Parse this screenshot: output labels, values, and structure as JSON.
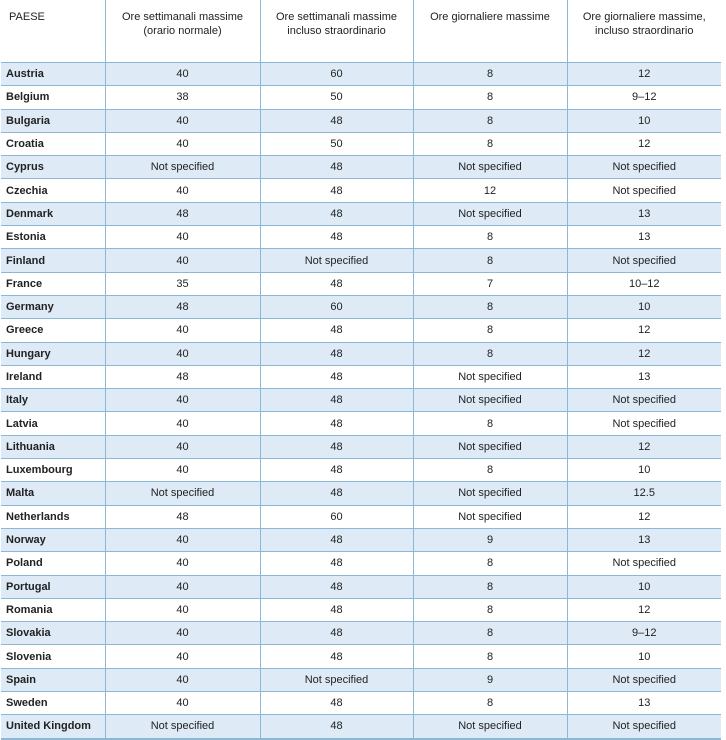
{
  "headers": [
    "PAESE",
    "Ore settimanali massime (orario normale)",
    "Ore settimanali massime incluso straordinario",
    "Ore giornaliere massime",
    "Ore giornaliere massime, incluso straordinario"
  ],
  "rows": [
    [
      "Austria",
      "40",
      "60",
      "8",
      "12"
    ],
    [
      "Belgium",
      "38",
      "50",
      "8",
      "9–12"
    ],
    [
      "Bulgaria",
      "40",
      "48",
      "8",
      "10"
    ],
    [
      "Croatia",
      "40",
      "50",
      "8",
      "12"
    ],
    [
      "Cyprus",
      "Not specified",
      "48",
      "Not specified",
      "Not specified"
    ],
    [
      "Czechia",
      "40",
      "48",
      "12",
      "Not specified"
    ],
    [
      "Denmark",
      "48",
      "48",
      "Not specified",
      "13"
    ],
    [
      "Estonia",
      "40",
      "48",
      "8",
      "13"
    ],
    [
      "Finland",
      "40",
      "Not specified",
      "8",
      "Not specified"
    ],
    [
      "France",
      "35",
      "48",
      "7",
      "10–12"
    ],
    [
      "Germany",
      "48",
      "60",
      "8",
      "10"
    ],
    [
      "Greece",
      "40",
      "48",
      "8",
      "12"
    ],
    [
      "Hungary",
      "40",
      "48",
      "8",
      "12"
    ],
    [
      "Ireland",
      "48",
      "48",
      "Not specified",
      "13"
    ],
    [
      "Italy",
      "40",
      "48",
      "Not specified",
      "Not specified"
    ],
    [
      "Latvia",
      "40",
      "48",
      "8",
      "Not specified"
    ],
    [
      "Lithuania",
      "40",
      "48",
      "Not specified",
      "12"
    ],
    [
      "Luxembourg",
      "40",
      "48",
      "8",
      "10"
    ],
    [
      "Malta",
      "Not specified",
      "48",
      "Not specified",
      "12.5"
    ],
    [
      "Netherlands",
      "48",
      "60",
      "Not specified",
      "12"
    ],
    [
      "Norway",
      "40",
      "48",
      "9",
      "13"
    ],
    [
      "Poland",
      "40",
      "48",
      "8",
      "Not specified"
    ],
    [
      "Portugal",
      "40",
      "48",
      "8",
      "10"
    ],
    [
      "Romania",
      "40",
      "48",
      "8",
      "12"
    ],
    [
      "Slovakia",
      "40",
      "48",
      "8",
      "9–12"
    ],
    [
      "Slovenia",
      "40",
      "48",
      "8",
      "10"
    ],
    [
      "Spain",
      "40",
      "Not specified",
      "9",
      "Not specified"
    ],
    [
      "Sweden",
      "40",
      "48",
      "8",
      "13"
    ],
    [
      "United Kingdom",
      "Not specified",
      "48",
      "Not specified",
      "Not specified"
    ]
  ],
  "colors": {
    "stripe": "#deeaf6",
    "border": "#8cb8d8",
    "background": "#ffffff"
  }
}
